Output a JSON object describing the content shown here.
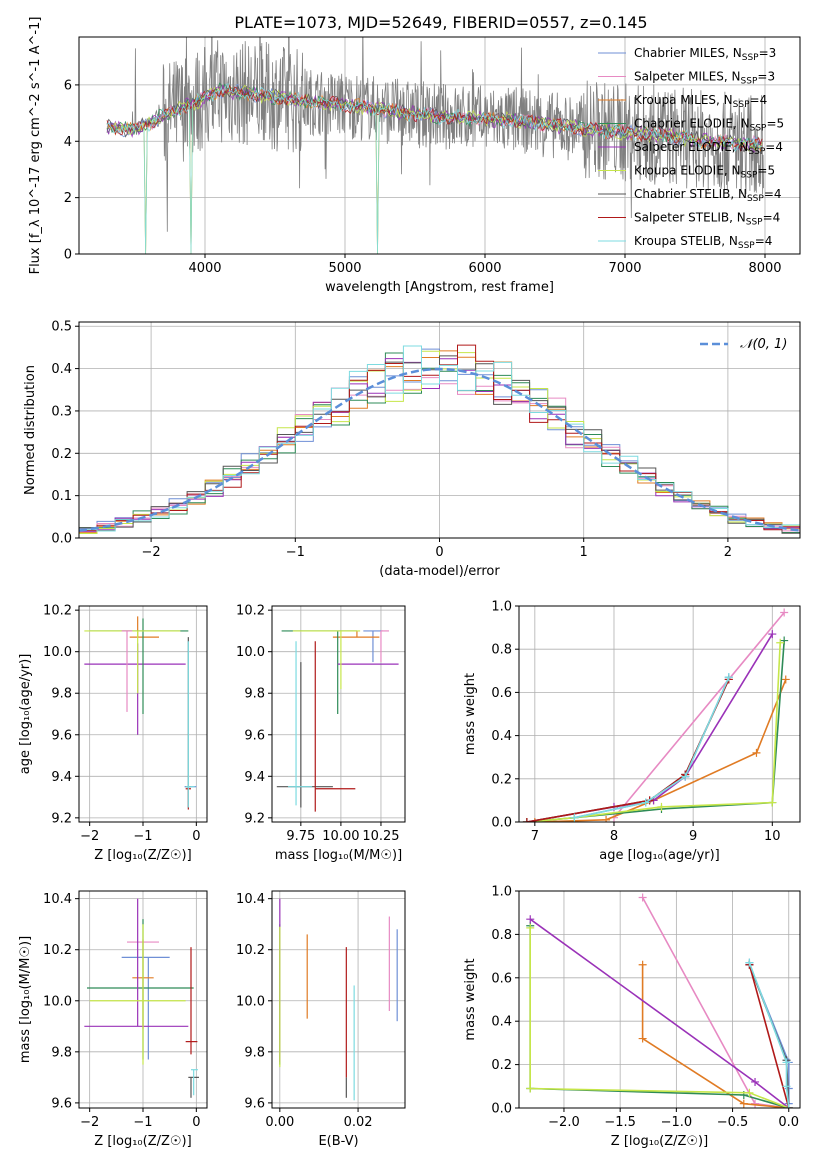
{
  "figure_title": "PLATE=1073, MJD=52649, FIBERID=0557, z=0.145",
  "colors": {
    "Chabrier MILES": "#6f8fd6",
    "Salpeter MILES": "#e78ac3",
    "Kroupa MILES": "#e07b24",
    "Chabrier ELODIE": "#2e8b57",
    "Salpeter ELODIE": "#9a32b8",
    "Kroupa ELODIE": "#c6e64a",
    "Chabrier STELIB": "#555555",
    "Salpeter STELIB": "#b01919",
    "Kroupa STELIB": "#7ddbe0",
    "data": "#808080",
    "gaussian": "#5b8fd9"
  },
  "chart_data": [
    {
      "id": "spectrum",
      "type": "line",
      "title": "PLATE=1073, MJD=52649, FIBERID=0557, z=0.145",
      "xlabel": "wavelength [Angstrom, rest frame]",
      "ylabel": "Flux [f_λ 10^-17 erg cm^-2 s^-1 A^-1]",
      "xlim": [
        3100,
        8250
      ],
      "ylim": [
        0,
        7.7
      ],
      "xticks": [
        4000,
        5000,
        6000,
        7000,
        8000
      ],
      "yticks": [
        0,
        2,
        4,
        6
      ],
      "legend_position": "right",
      "legend": [
        {
          "label": "Chabrier MILES, N",
          "sub": "SSP",
          "tail": "=3"
        },
        {
          "label": "Salpeter MILES, N",
          "sub": "SSP",
          "tail": "=3"
        },
        {
          "label": "Kroupa MILES, N",
          "sub": "SSP",
          "tail": "=4"
        },
        {
          "label": "Chabrier ELODIE, N",
          "sub": "SSP",
          "tail": "=5"
        },
        {
          "label": "Salpeter ELODIE, N",
          "sub": "SSP",
          "tail": "=4"
        },
        {
          "label": "Kroupa ELODIE, N",
          "sub": "SSP",
          "tail": "=5"
        },
        {
          "label": "Chabrier STELIB, N",
          "sub": "SSP",
          "tail": "=4"
        },
        {
          "label": "Salpeter STELIB, N",
          "sub": "SSP",
          "tail": "=4"
        },
        {
          "label": "Kroupa STELIB, N",
          "sub": "SSP",
          "tail": "=4"
        }
      ],
      "continuum_model": [
        [
          3300,
          4.5
        ],
        [
          3500,
          4.4
        ],
        [
          3700,
          4.9
        ],
        [
          3900,
          5.3
        ],
        [
          4100,
          5.8
        ],
        [
          4300,
          5.7
        ],
        [
          4600,
          5.5
        ],
        [
          5000,
          5.3
        ],
        [
          5300,
          5.1
        ],
        [
          5600,
          4.9
        ],
        [
          6000,
          4.8
        ],
        [
          6300,
          4.7
        ],
        [
          6600,
          4.5
        ],
        [
          7000,
          4.3
        ],
        [
          7300,
          4.2
        ],
        [
          7600,
          4.0
        ],
        [
          7900,
          3.9
        ]
      ],
      "model_spikes": [
        [
          3580,
          0
        ],
        [
          3900,
          0
        ],
        [
          5230,
          0
        ],
        [
          6810,
          0
        ]
      ]
    },
    {
      "id": "residuals",
      "type": "histogram",
      "xlabel": "(data-model)/error",
      "ylabel": "Normed distribution",
      "xlim": [
        -2.5,
        2.5
      ],
      "ylim": [
        0,
        0.51
      ],
      "xticks": [
        -2,
        -1,
        0,
        1,
        2
      ],
      "yticks": [
        0.0,
        0.1,
        0.2,
        0.3,
        0.4,
        0.5
      ],
      "legend_position": "top-right",
      "legend_label": "𝒩(0, 1)",
      "bin_width": 0.125,
      "reference_curve": "normal(0,1)"
    },
    {
      "id": "age-vs-Z",
      "type": "scatter",
      "xlabel": "Z [log₁₀(Z/Z☉)]",
      "ylabel": "age  [log₁₀(age/yr)]",
      "xlim": [
        -2.2,
        0.2
      ],
      "ylim": [
        9.18,
        10.22
      ],
      "xticks": [
        -2,
        -1,
        0
      ],
      "yticks": [
        9.2,
        9.4,
        9.6,
        9.8,
        10.0,
        10.2
      ],
      "points": [
        {
          "series": "Chabrier MILES",
          "x": -0.1,
          "y": 9.35,
          "xerr": [
            0.12,
            0.1
          ],
          "yerr": [
            0.0,
            0.0
          ]
        },
        {
          "series": "Kroupa MILES",
          "x": -1.1,
          "y": 10.07,
          "xerr": [
            0.15,
            0.4
          ],
          "yerr": [
            0.0,
            0.1
          ]
        },
        {
          "series": "Salpeter ELODIE",
          "x": -1.1,
          "y": 9.94,
          "xerr": [
            1.0,
            0.9
          ],
          "yerr": [
            0.34,
            0.1
          ]
        },
        {
          "series": "Chabrier ELODIE",
          "x": -1.0,
          "y": 10.1,
          "xerr": [
            1.0,
            0.85
          ],
          "yerr": [
            0.4,
            0.06
          ]
        },
        {
          "series": "Kroupa ELODIE",
          "x": -1.1,
          "y": 10.1,
          "xerr": [
            1.0,
            0.8
          ],
          "yerr": [
            0.3,
            0.0
          ]
        },
        {
          "series": "Chabrier STELIB",
          "x": -0.15,
          "y": 9.35,
          "xerr": [
            0.05,
            0.05
          ],
          "yerr": [
            0.1,
            0.72
          ]
        },
        {
          "series": "Salpeter STELIB",
          "x": -0.15,
          "y": 9.34,
          "xerr": [
            0.05,
            0.05
          ],
          "yerr": [
            0.1,
            0.0
          ]
        },
        {
          "series": "Kroupa STELIB",
          "x": -0.15,
          "y": 9.35,
          "xerr": [
            0.05,
            0.12
          ],
          "yerr": [
            0.1,
            0.7
          ]
        },
        {
          "series": "Salpeter MILES",
          "x": -1.3,
          "y": 10.1,
          "xerr": [
            0.1,
            0.1
          ],
          "yerr": [
            0.39,
            0.0
          ]
        }
      ]
    },
    {
      "id": "age-vs-mass",
      "type": "scatter",
      "xlabel": "mass [log₁₀(M/M☉)]",
      "ylabel": "",
      "xlim": [
        9.57,
        10.4
      ],
      "ylim": [
        9.18,
        10.22
      ],
      "xticks": [
        9.75,
        10.0,
        10.25
      ],
      "xticklabels": [
        "9.75",
        "10.00",
        "10.25"
      ],
      "yticks": [
        9.2,
        9.4,
        9.6,
        9.8,
        10.0,
        10.2
      ],
      "points": [
        {
          "series": "Chabrier MILES",
          "x": 10.2,
          "y": 10.1,
          "xerr": [
            0.06,
            0.06
          ],
          "yerr": [
            0.15,
            0.0
          ]
        },
        {
          "series": "Salpeter MILES",
          "x": 10.25,
          "y": 10.1,
          "xerr": [
            0.0,
            0.05
          ],
          "yerr": [
            0.15,
            0.0
          ]
        },
        {
          "series": "Kroupa MILES",
          "x": 10.1,
          "y": 10.07,
          "xerr": [
            0.15,
            0.14
          ],
          "yerr": [
            0.0,
            0.03
          ]
        },
        {
          "series": "Chabrier ELODIE",
          "x": 9.98,
          "y": 10.1,
          "xerr": [
            0.35,
            0.12
          ],
          "yerr": [
            0.4,
            0.0
          ]
        },
        {
          "series": "Salpeter ELODIE",
          "x": 9.98,
          "y": 9.94,
          "xerr": [
            0.0,
            0.38
          ],
          "yerr": [
            0.0,
            0.0
          ]
        },
        {
          "series": "Kroupa ELODIE",
          "x": 10.0,
          "y": 10.1,
          "xerr": [
            0.3,
            0.12
          ],
          "yerr": [
            0.28,
            0.0
          ]
        },
        {
          "series": "Chabrier STELIB",
          "x": 9.75,
          "y": 9.35,
          "xerr": [
            0.15,
            0.2
          ],
          "yerr": [
            0.1,
            0.6
          ]
        },
        {
          "series": "Salpeter STELIB",
          "x": 9.84,
          "y": 9.34,
          "xerr": [
            0.0,
            0.25
          ],
          "yerr": [
            0.11,
            0.71
          ]
        },
        {
          "series": "Kroupa STELIB",
          "x": 9.72,
          "y": 9.35,
          "xerr": [
            0.05,
            0.1
          ],
          "yerr": [
            0.09,
            0.7
          ]
        }
      ]
    },
    {
      "id": "weight-vs-age",
      "type": "line",
      "xlabel": "age  [log₁₀(age/yr)]",
      "ylabel": "mass weight",
      "xlim": [
        6.8,
        10.35
      ],
      "ylim": [
        0,
        1.0
      ],
      "xticks": [
        7,
        8,
        9,
        10
      ],
      "yticks": [
        0.0,
        0.2,
        0.4,
        0.6,
        0.8,
        1.0
      ],
      "series": [
        {
          "name": "Chabrier MILES",
          "x": [
            7.5,
            8.4,
            8.9,
            9.45
          ],
          "y": [
            0.02,
            0.09,
            0.21,
            0.67
          ]
        },
        {
          "name": "Salpeter MILES",
          "x": [
            8.0,
            10.15
          ],
          "y": [
            0.02,
            0.97
          ]
        },
        {
          "name": "Kroupa MILES",
          "x": [
            7.0,
            7.9,
            8.5,
            9.8,
            10.17
          ],
          "y": [
            0.0,
            0.01,
            0.1,
            0.32,
            0.66
          ]
        },
        {
          "name": "Chabrier ELODIE",
          "x": [
            6.9,
            7.5,
            8.6,
            10.0,
            10.15
          ],
          "y": [
            0.0,
            0.02,
            0.06,
            0.09,
            0.84
          ]
        },
        {
          "name": "Salpeter ELODIE",
          "x": [
            6.9,
            8.0,
            8.5,
            8.9,
            10.0
          ],
          "y": [
            0.0,
            0.07,
            0.1,
            0.21,
            0.87
          ]
        },
        {
          "name": "Kroupa ELODIE",
          "x": [
            6.9,
            7.5,
            8.6,
            10.0,
            10.1
          ],
          "y": [
            0.0,
            0.02,
            0.07,
            0.09,
            0.83
          ]
        },
        {
          "name": "Chabrier STELIB",
          "x": [
            6.9,
            8.45,
            8.9,
            9.45
          ],
          "y": [
            0.0,
            0.1,
            0.22,
            0.66
          ]
        },
        {
          "name": "Salpeter STELIB",
          "x": [
            6.9,
            8.45,
            8.9,
            9.45
          ],
          "y": [
            0.0,
            0.1,
            0.22,
            0.66
          ]
        },
        {
          "name": "Kroupa STELIB",
          "x": [
            7.5,
            8.4,
            8.9,
            9.45
          ],
          "y": [
            0.02,
            0.09,
            0.21,
            0.67
          ]
        }
      ]
    },
    {
      "id": "mass-vs-Z",
      "type": "scatter",
      "xlabel": "Z [log₁₀(Z/Z☉)]",
      "ylabel": "mass [log₁₀(M/M☉)]",
      "xlim": [
        -2.2,
        0.2
      ],
      "ylim": [
        9.58,
        10.43
      ],
      "xticks": [
        -2,
        -1,
        0
      ],
      "yticks": [
        9.6,
        9.8,
        10.0,
        10.2,
        10.4
      ],
      "points": [
        {
          "series": "Chabrier MILES",
          "x": -0.9,
          "y": 10.17,
          "xerr": [
            0.5,
            0.4
          ],
          "yerr": [
            0.4,
            0.0
          ]
        },
        {
          "series": "Salpeter MILES",
          "x": -0.7,
          "y": 10.23,
          "xerr": [
            0.6,
            0.0
          ],
          "yerr": [
            0.0,
            0.0
          ]
        },
        {
          "series": "Kroupa MILES",
          "x": -1.0,
          "y": 10.09,
          "xerr": [
            0.2,
            0.2
          ],
          "yerr": [
            0.2,
            0.15
          ]
        },
        {
          "series": "Chabrier ELODIE",
          "x": -1.0,
          "y": 10.05,
          "xerr": [
            1.05,
            0.95
          ],
          "yerr": [
            0.28,
            0.27
          ]
        },
        {
          "series": "Salpeter ELODIE",
          "x": -1.1,
          "y": 9.9,
          "xerr": [
            1.0,
            0.95
          ],
          "yerr": [
            0.0,
            0.5
          ]
        },
        {
          "series": "Kroupa ELODIE",
          "x": -1.0,
          "y": 10.0,
          "xerr": [
            1.0,
            0.8
          ],
          "yerr": [
            0.25,
            0.3
          ]
        },
        {
          "series": "Chabrier STELIB",
          "x": -0.1,
          "y": 9.7,
          "xerr": [
            0.05,
            0.15
          ],
          "yerr": [
            0.08,
            0.0
          ]
        },
        {
          "series": "Salpeter STELIB",
          "x": -0.1,
          "y": 9.84,
          "xerr": [
            0.1,
            0.12
          ],
          "yerr": [
            0.05,
            0.37
          ]
        },
        {
          "series": "Kroupa STELIB",
          "x": -0.05,
          "y": 9.73,
          "xerr": [
            0.05,
            0.08
          ],
          "yerr": [
            0.1,
            0.0
          ]
        }
      ]
    },
    {
      "id": "mass-vs-ebv",
      "type": "scatter",
      "xlabel": "E(B-V)",
      "ylabel": "",
      "xlim": [
        -0.002,
        0.032
      ],
      "ylim": [
        9.58,
        10.43
      ],
      "xticks": [
        0.0,
        0.02
      ],
      "xticklabels": [
        "0.00",
        "0.02"
      ],
      "yticks": [
        9.6,
        9.8,
        10.0,
        10.2,
        10.4
      ],
      "points": [
        {
          "series": "Chabrier MILES",
          "x": 0.03,
          "y": 10.1,
          "xerr": [
            0,
            0
          ],
          "yerr": [
            0.18,
            0.18
          ]
        },
        {
          "series": "Salpeter MILES",
          "x": 0.028,
          "y": 10.12,
          "xerr": [
            0,
            0
          ],
          "yerr": [
            0.16,
            0.21
          ]
        },
        {
          "series": "Kroupa MILES",
          "x": 0.007,
          "y": 10.1,
          "xerr": [
            0,
            0
          ],
          "yerr": [
            0.17,
            0.16
          ]
        },
        {
          "series": "Chabrier ELODIE",
          "x": 0.0,
          "y": 10.05,
          "xerr": [
            0,
            0
          ],
          "yerr": [
            0.3,
            0.25
          ]
        },
        {
          "series": "Salpeter ELODIE",
          "x": 0.0,
          "y": 10.06,
          "xerr": [
            0,
            0
          ],
          "yerr": [
            0.3,
            0.34
          ]
        },
        {
          "series": "Kroupa ELODIE",
          "x": 0.0,
          "y": 10.02,
          "xerr": [
            0,
            0
          ],
          "yerr": [
            0.28,
            0.27
          ]
        },
        {
          "series": "Chabrier STELIB",
          "x": 0.017,
          "y": 9.7,
          "xerr": [
            0,
            0
          ],
          "yerr": [
            0.08,
            0.0
          ]
        },
        {
          "series": "Salpeter STELIB",
          "x": 0.017,
          "y": 9.9,
          "xerr": [
            0,
            0
          ],
          "yerr": [
            0.2,
            0.31
          ]
        },
        {
          "series": "Kroupa STELIB",
          "x": 0.019,
          "y": 9.83,
          "xerr": [
            0,
            0
          ],
          "yerr": [
            0.22,
            0.23
          ]
        }
      ]
    },
    {
      "id": "weight-vs-Z",
      "type": "line",
      "xlabel": "Z [log₁₀(Z/Z☉)]",
      "ylabel": "mass weight",
      "xlim": [
        -2.4,
        0.1
      ],
      "ylim": [
        0,
        1.0
      ],
      "xticks": [
        -2.0,
        -1.5,
        -1.0,
        -0.5,
        0.0
      ],
      "xticklabels": [
        "−2.0",
        "−1.5",
        "−1.0",
        "−0.5",
        "0.0"
      ],
      "yticks": [
        0.0,
        0.2,
        0.4,
        0.6,
        0.8,
        1.0
      ],
      "series": [
        {
          "name": "Chabrier MILES",
          "x": [
            -0.35,
            -0.35,
            0.0,
            0.0,
            0.0
          ],
          "y": [
            0.67,
            0.66,
            0.21,
            0.09,
            0.02
          ]
        },
        {
          "name": "Salpeter MILES",
          "x": [
            -1.3,
            -0.3,
            0.0
          ],
          "y": [
            0.97,
            0.02,
            0.0
          ]
        },
        {
          "name": "Kroupa MILES",
          "x": [
            -1.3,
            -1.3,
            -0.4,
            0.0
          ],
          "y": [
            0.66,
            0.32,
            0.02,
            0.0
          ]
        },
        {
          "name": "Chabrier ELODIE",
          "x": [
            -2.3,
            -2.3,
            -0.4,
            0.0
          ],
          "y": [
            0.84,
            0.09,
            0.06,
            0.0
          ]
        },
        {
          "name": "Salpeter ELODIE",
          "x": [
            -2.3,
            -0.3,
            0.0
          ],
          "y": [
            0.87,
            0.12,
            0.0
          ]
        },
        {
          "name": "Kroupa ELODIE",
          "x": [
            -2.3,
            -2.3,
            -0.35,
            0.0
          ],
          "y": [
            0.83,
            0.09,
            0.07,
            0.0
          ]
        },
        {
          "name": "Chabrier STELIB",
          "x": [
            -0.35,
            -0.02,
            0.0
          ],
          "y": [
            0.66,
            0.22,
            0.0
          ]
        },
        {
          "name": "Salpeter STELIB",
          "x": [
            -0.35,
            0.0
          ],
          "y": [
            0.66,
            0.0
          ]
        },
        {
          "name": "Kroupa STELIB",
          "x": [
            -0.35,
            -0.02,
            -0.02,
            0.0
          ],
          "y": [
            0.67,
            0.21,
            0.1,
            0.0
          ]
        }
      ]
    }
  ]
}
